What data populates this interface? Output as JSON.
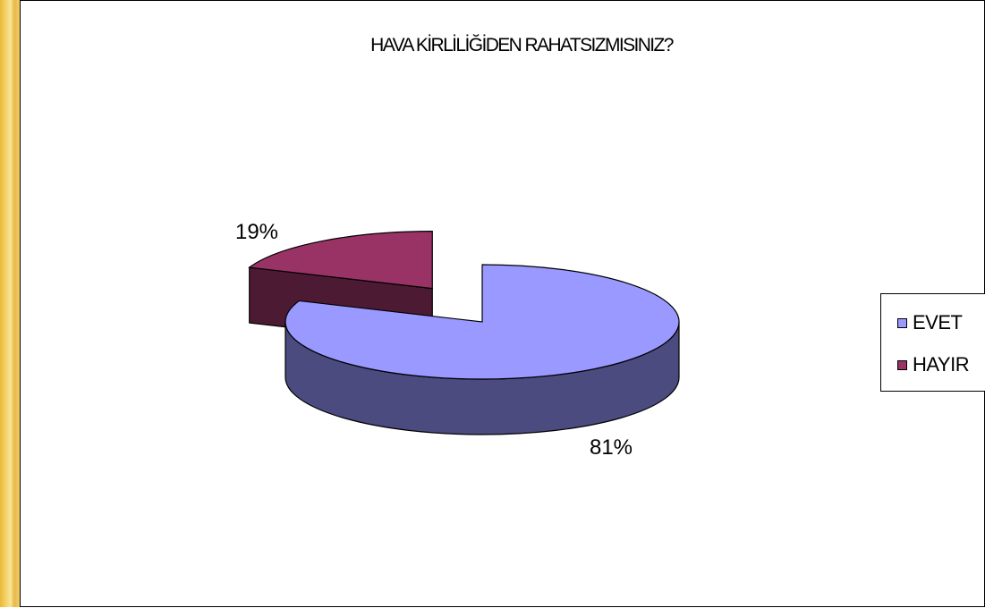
{
  "chart_data": {
    "type": "pie",
    "title": "HAVA KİRLİLİĞİDEN RAHATSIZMISINIZ?",
    "categories": [
      "EVET",
      "HAYIR"
    ],
    "values": [
      81,
      19
    ],
    "labels": [
      "81%",
      "19%"
    ],
    "legend_position": "right",
    "three_d": true,
    "exploded": true,
    "colors": {
      "EVET": "#9999ff",
      "EVET_side": "#4b4b80",
      "HAYIR": "#993366",
      "HAYIR_side": "#4d1a33"
    }
  },
  "legend": {
    "items": [
      {
        "label": "EVET",
        "color": "#9999ff"
      },
      {
        "label": "HAYIR",
        "color": "#993366"
      }
    ]
  }
}
